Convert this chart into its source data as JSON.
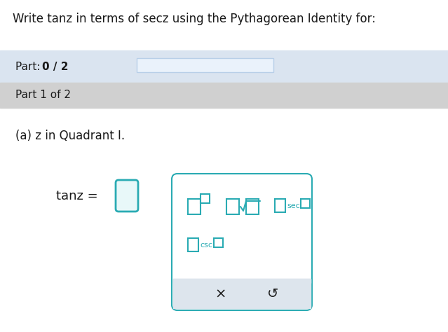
{
  "title_text": "Write tanz in terms of secz using the Pythagorean Identity for:",
  "background_color": "#ffffff",
  "part_bar_color": "#dae4f0",
  "part1_bar_color": "#d0d0d0",
  "part_text": "Part: ",
  "part_bold": "0 / 2",
  "part1_text": "Part 1 of 2",
  "question_text": "(a) z in Quadrant I.",
  "tan_label": "tanz =",
  "teal": "#2aabb3",
  "progress_bar_fill": "#eaf2fb",
  "progress_bar_border": "#b8cfe8",
  "bottom_bar_color": "#dde5ed",
  "x_button_text": "×",
  "reset_button_text": "↺",
  "dark_text": "#1a1a1a",
  "gray_text": "#555555"
}
